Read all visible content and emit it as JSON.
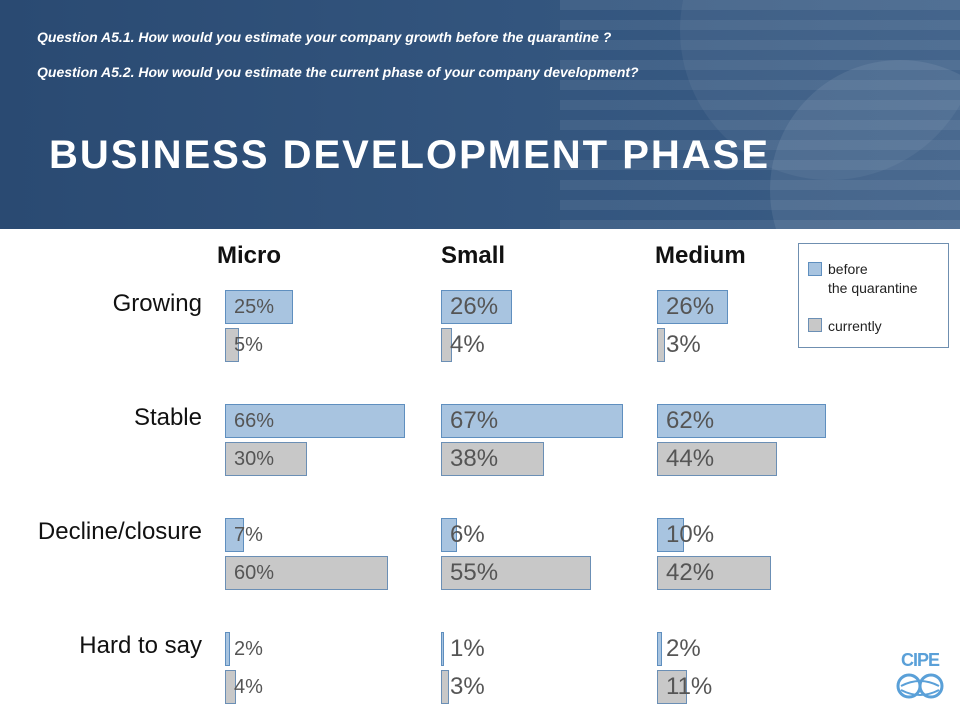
{
  "header": {
    "question1": "Question A5.1. How would you estimate your company growth before the quarantine ?",
    "question2": "Question A5.2. How would you estimate the current phase of your company development?",
    "title": "BUSINESS DEVELOPMENT PHASE"
  },
  "legend": {
    "before_line1": "before",
    "before_line2": "the quarantine",
    "current": "currently"
  },
  "logo": {
    "text": "CIPE"
  },
  "colors": {
    "before": "#a8c4e0",
    "current": "#c8c8c8",
    "header": "#2f5078"
  },
  "chart_data": {
    "type": "bar",
    "orientation": "horizontal",
    "groups": [
      "Micro",
      "Small",
      "Medium"
    ],
    "categories": [
      "Growing",
      "Stable",
      "Decline/closure",
      "Hard to say"
    ],
    "series": [
      {
        "name": "before the quarantine",
        "values": {
          "Micro": [
            25,
            66,
            7,
            2
          ],
          "Small": [
            26,
            67,
            6,
            1
          ],
          "Medium": [
            26,
            62,
            10,
            2
          ]
        }
      },
      {
        "name": "currently",
        "values": {
          "Micro": [
            5,
            30,
            60,
            4
          ],
          "Small": [
            4,
            38,
            55,
            3
          ],
          "Medium": [
            3,
            44,
            42,
            11
          ]
        }
      }
    ],
    "value_suffix": "%",
    "legend_position": "top-right"
  }
}
